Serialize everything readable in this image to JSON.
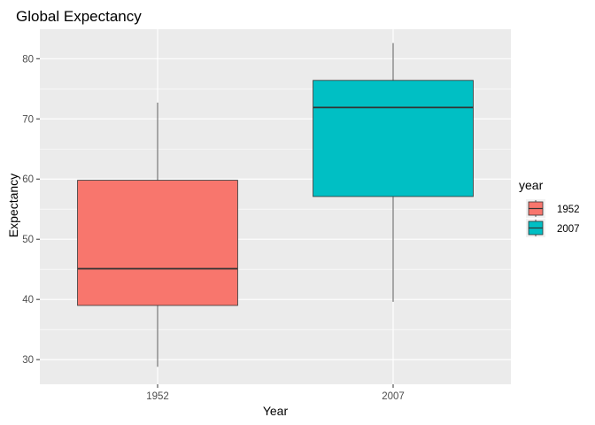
{
  "chart_data": {
    "type": "boxplot",
    "title": "Global Expectancy",
    "xlabel": "Year",
    "ylabel": "Expectancy",
    "categories": [
      "1952",
      "2007"
    ],
    "ylim": [
      25.9,
      84.9
    ],
    "yticks": [
      30,
      40,
      50,
      60,
      70,
      80
    ],
    "grid": true,
    "legend": {
      "title": "year",
      "position": "right",
      "entries": [
        "1952",
        "2007"
      ]
    },
    "series": [
      {
        "category": "1952",
        "min": 28.8,
        "q1": 39.0,
        "median": 45.1,
        "q3": 59.8,
        "max": 72.7,
        "color": "#F8766D"
      },
      {
        "category": "2007",
        "min": 39.6,
        "q1": 57.1,
        "median": 71.9,
        "q3": 76.4,
        "max": 82.6,
        "color": "#00BFC4"
      }
    ],
    "panel_color": "#EBEBEB",
    "grid_color": "#FFFFFF",
    "line_color": "#333333"
  }
}
